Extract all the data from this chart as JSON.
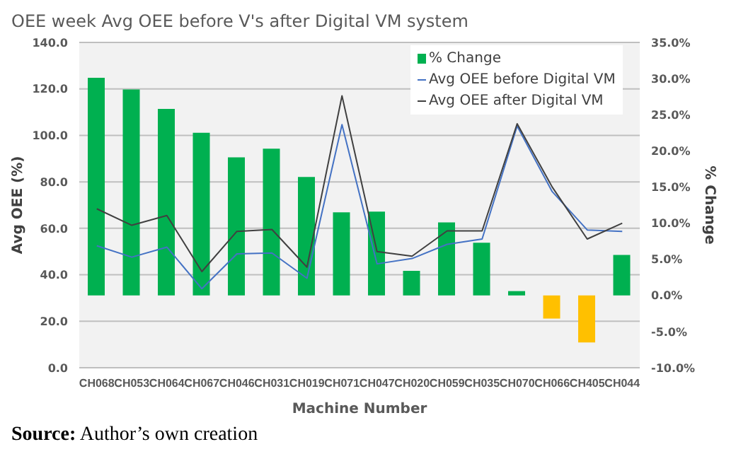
{
  "chart_data": {
    "type": "bar",
    "title": "OEE week Avg OEE before V's after Digital VM system",
    "xlabel": "Machine Number",
    "ylabel": "Avg OEE (%)",
    "y2label": "% Change",
    "categories": [
      "CH068",
      "CH053",
      "CH064",
      "CH067",
      "CH046",
      "CH031",
      "CH019",
      "CH071",
      "CH047",
      "CH020",
      "CH059",
      "CH035",
      "CH070",
      "CH066",
      "CH405",
      "CH044"
    ],
    "series": [
      {
        "name": "% Change",
        "axis": "y2",
        "color": "#00b050",
        "colors": [
          "#00b050",
          "#00b050",
          "#00b050",
          "#00b050",
          "#00b050",
          "#00b050",
          "#00b050",
          "#00b050",
          "#00b050",
          "#00b050",
          "#00b050",
          "#00b050",
          "#00b050",
          "#ffc000",
          "#ffc000",
          "#00b050"
        ],
        "values": [
          30.1,
          28.5,
          25.8,
          22.5,
          19.1,
          20.3,
          16.4,
          11.5,
          11.6,
          3.4,
          10.1,
          7.3,
          0.6,
          -3.2,
          -6.5,
          5.6
        ]
      },
      {
        "name": "Avg OEE before Digital VM",
        "type": "line",
        "color": "#4472c4",
        "values": [
          52.5,
          47.6,
          51.9,
          34.0,
          49.0,
          49.4,
          38.5,
          104.6,
          44.7,
          47.0,
          53.1,
          55.4,
          104.0,
          75.8,
          59.3,
          58.7
        ]
      },
      {
        "name": "Avg OEE after Digital VM",
        "type": "line",
        "color": "#404040",
        "values": [
          68.4,
          61.3,
          65.5,
          41.4,
          58.7,
          59.5,
          43.3,
          117.0,
          50.0,
          48.0,
          58.9,
          58.9,
          105.0,
          77.8,
          55.4,
          62.2
        ]
      }
    ],
    "ylim": [
      0,
      140
    ],
    "yticks": [
      {
        "value": 0,
        "label": "0.0"
      },
      {
        "value": 20,
        "label": "20.0"
      },
      {
        "value": 40,
        "label": "40.0"
      },
      {
        "value": 60,
        "label": "60.0"
      },
      {
        "value": 80,
        "label": "80.0"
      },
      {
        "value": 100,
        "label": "100.0"
      },
      {
        "value": 120,
        "label": "120.0"
      },
      {
        "value": 140,
        "label": "140.0"
      }
    ],
    "y2lim": [
      -10,
      35
    ],
    "y2ticks": [
      {
        "value": -10,
        "label": "-10.0%"
      },
      {
        "value": -5,
        "label": "-5.0%"
      },
      {
        "value": 0,
        "label": "0.0%"
      },
      {
        "value": 5,
        "label": "5.0%"
      },
      {
        "value": 10,
        "label": "10.0%"
      },
      {
        "value": 15,
        "label": "15.0%"
      },
      {
        "value": 20,
        "label": "20.0%"
      },
      {
        "value": 25,
        "label": "25.0%"
      },
      {
        "value": 30,
        "label": "30.0%"
      },
      {
        "value": 35,
        "label": "35.0%"
      }
    ],
    "grid": "y",
    "legend": "top right",
    "marker": "none",
    "line_style": "solid",
    "annotations": [
      "Source: Author’s own creation"
    ]
  }
}
